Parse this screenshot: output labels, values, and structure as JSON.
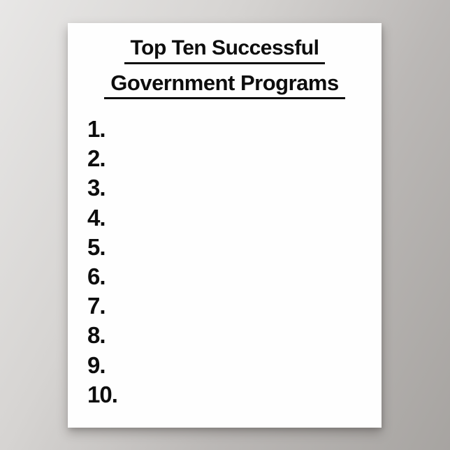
{
  "poster": {
    "title_line1": "Top Ten Successful",
    "title_line2": "Government Programs",
    "list_numbers": [
      "1.",
      "2.",
      "3.",
      "4.",
      "5.",
      "6.",
      "7.",
      "8.",
      "9.",
      "10."
    ]
  },
  "colors": {
    "poster_background": "#fefefe",
    "text": "#0d0d0d",
    "wall_light": "#e8e7e6",
    "wall_dark": "#a7a4a1"
  }
}
